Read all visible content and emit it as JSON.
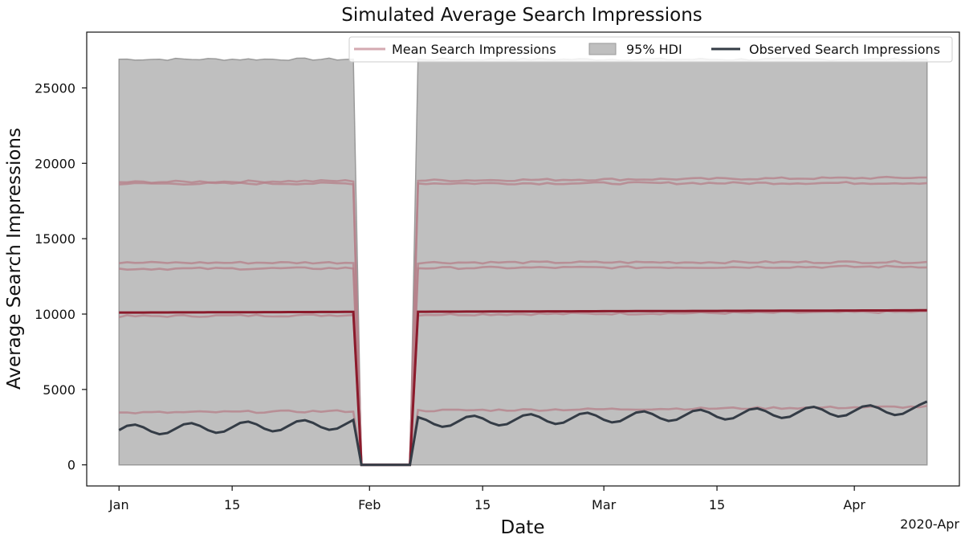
{
  "chart_data": {
    "type": "line",
    "title": "Simulated Average Search Impressions",
    "xlabel": "Date",
    "ylabel": "Average Search Impressions",
    "x_start": "2020-01-01",
    "x_end": "2020-04-10",
    "x_offset_label": "2020-Apr",
    "xlim": [
      "2019-12-28",
      "2020-04-14"
    ],
    "ylim": [
      -1400,
      28700
    ],
    "x_ticks": [
      {
        "date": "2020-01-01",
        "label": "Jan"
      },
      {
        "date": "2020-01-15",
        "label": "15"
      },
      {
        "date": "2020-02-01",
        "label": "Feb"
      },
      {
        "date": "2020-02-15",
        "label": "15"
      },
      {
        "date": "2020-03-01",
        "label": "Mar"
      },
      {
        "date": "2020-03-15",
        "label": "15"
      },
      {
        "date": "2020-04-01",
        "label": "Apr"
      }
    ],
    "y_ticks": [
      0,
      5000,
      10000,
      15000,
      20000,
      25000
    ],
    "gap": {
      "last_before": "2020-01-30",
      "zero_from": "2020-01-31",
      "zero_to": "2020-02-06",
      "first_after": "2020-02-07"
    },
    "hdi": {
      "name": "95% HDI",
      "lower": 0,
      "upper": 26900
    },
    "mean_lines": [
      {
        "name": "Mean Search Impressions",
        "level": 10100,
        "level_end": 10250
      },
      {
        "level": 9850,
        "level_end": 10150
      },
      {
        "level": 18750,
        "level_end": 19050
      },
      {
        "level": 18650,
        "level_end": 18700
      },
      {
        "level": 13400,
        "level_end": 13450
      },
      {
        "level": 13000,
        "level_end": 13150
      },
      {
        "level": 3450,
        "level_end": 3850
      }
    ],
    "observed": {
      "name": "Observed Search Impressions",
      "base_start": 2300,
      "base_end": 3700,
      "weekly_amplitude": 350,
      "end_value": 4200
    },
    "legend_position": "top-right",
    "colors": {
      "mean": "#8b1a2b",
      "mean_faint": "#b57f88",
      "hdi_fill": "#bfbfbf",
      "hdi_edge": "#9a9a9a",
      "observed": "#343c46"
    }
  }
}
